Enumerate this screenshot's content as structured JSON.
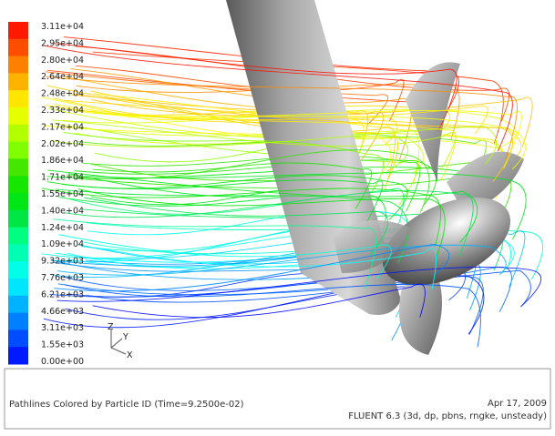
{
  "colorbar": {
    "labels": [
      "3.11e+04",
      "2.95e+04",
      "2.80e+04",
      "2.64e+04",
      "2.48e+04",
      "2.33e+04",
      "2.17e+04",
      "2.02e+04",
      "1.86e+04",
      "1.71e+04",
      "1.55e+04",
      "1.40e+04",
      "1.24e+04",
      "1.09e+04",
      "9.32e+03",
      "7.76e+03",
      "6.21e+03",
      "4.66e+03",
      "3.11e+03",
      "1.55e+03",
      "0.00e+00"
    ]
  },
  "axes": {
    "z": "Z",
    "y": "Y",
    "x": "X"
  },
  "footer": {
    "title": "Pathlines Colored by Particle ID  (Time=9.2500e-02)",
    "date": "Apr 17, 2009",
    "solver": "FLUENT 6.3 (3d, dp, pbns, rngke, unsteady)"
  }
}
